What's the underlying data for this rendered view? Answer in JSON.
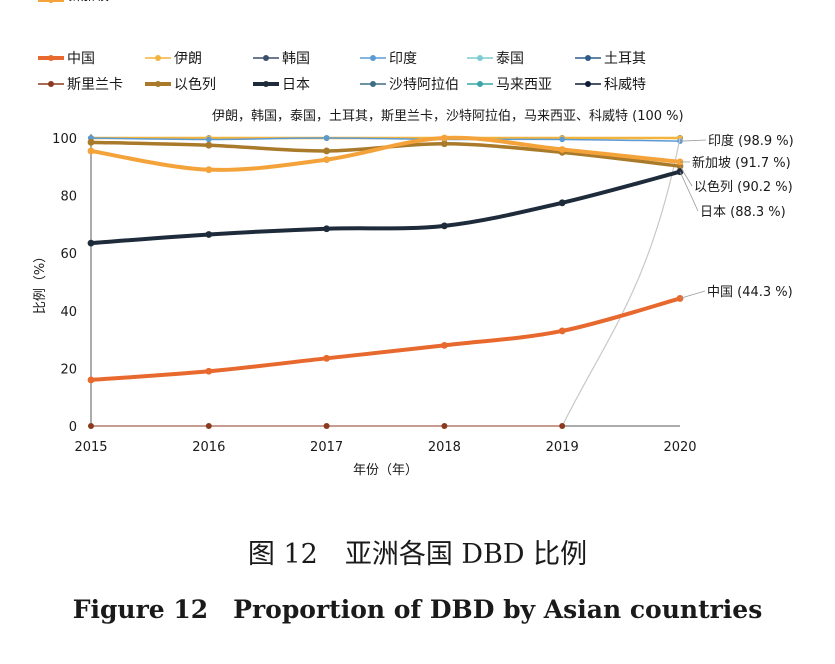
{
  "chart_data": {
    "type": "line",
    "title": "",
    "xlabel": "年份（年）",
    "ylabel": "比例（%）",
    "ylim": [
      0,
      100
    ],
    "y_ticks": [
      0,
      20,
      40,
      60,
      80,
      100
    ],
    "x": [
      "2015",
      "2016",
      "2017",
      "2018",
      "2019",
      "2020"
    ],
    "grid": false,
    "legend_position": "top",
    "series": [
      {
        "name": "中国",
        "color": "#E8692E",
        "marker": "dot",
        "values": [
          16,
          19,
          23.5,
          28,
          33,
          44.3
        ]
      },
      {
        "name": "伊朗",
        "color": "#F2B43C",
        "marker": "dot",
        "values": [
          100,
          100,
          100,
          100,
          100,
          100
        ]
      },
      {
        "name": "韩国",
        "color": "#3A4F6B",
        "marker": "dot",
        "values": [
          100,
          100,
          100,
          100,
          100,
          100
        ]
      },
      {
        "name": "印度",
        "color": "#5B9BD5",
        "marker": "dot",
        "values": [
          100,
          99.5,
          100,
          99.5,
          99.5,
          98.9
        ]
      },
      {
        "name": "泰国",
        "color": "#7FCBD3",
        "marker": "dot",
        "values": [
          100,
          100,
          100,
          100,
          100,
          100
        ]
      },
      {
        "name": "土耳其",
        "color": "#2E5C8A",
        "marker": "dot",
        "values": [
          100,
          100,
          100,
          100,
          100,
          100
        ]
      },
      {
        "name": "斯里兰卡",
        "color": "#8B3A1F",
        "marker": "dot",
        "values": [
          0,
          0,
          0,
          0,
          0,
          100
        ]
      },
      {
        "name": "以色列",
        "color": "#A97A2A",
        "marker": "dot",
        "values": [
          98.5,
          97.5,
          95.5,
          98,
          95,
          90.2
        ]
      },
      {
        "name": "日本",
        "color": "#1E2B3A",
        "marker": "dot",
        "values": [
          63.5,
          66.5,
          68.5,
          69.5,
          77.5,
          88.3
        ]
      },
      {
        "name": "沙特阿拉伯",
        "color": "#3E6E86",
        "marker": "dot",
        "values": [
          100,
          100,
          100,
          100,
          100,
          100
        ]
      },
      {
        "name": "马来西亚",
        "color": "#3AA7A7",
        "marker": "dot",
        "values": [
          100,
          100,
          100,
          100,
          100,
          100
        ]
      },
      {
        "name": "科威特",
        "color": "#0F1E36",
        "marker": "dot",
        "values": [
          100,
          100,
          100,
          100,
          100,
          100
        ]
      },
      {
        "name": "新加坡",
        "color": "#F4A23A",
        "marker": "dot",
        "values": [
          95.5,
          89,
          92.5,
          100,
          96,
          91.7
        ]
      }
    ],
    "annotations": [
      {
        "text": "伊朗，韩国，泰国，土耳其，斯里兰卡，沙特阿拉伯，马来西亚、科威特 (100 %)",
        "y": 100
      },
      {
        "text": "印度 (98.9 %)",
        "y": 98.9
      },
      {
        "text": "新加坡 (91.7 %)",
        "y": 91.7
      },
      {
        "text": "以色列 (90.2 %)",
        "y": 90.2
      },
      {
        "text": "日本 (88.3 %)",
        "y": 88.3
      },
      {
        "text": "中国 (44.3 %)",
        "y": 44.3
      }
    ]
  },
  "captions": {
    "cn": "图 12　亚洲各国 DBD 比例",
    "en": "Figure 12　Proportion of  DBD by Asian countries"
  }
}
